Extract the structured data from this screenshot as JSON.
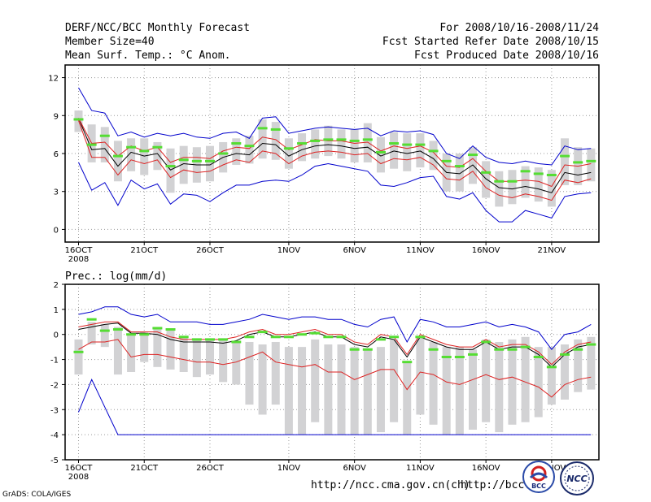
{
  "header": {
    "title": "DERF/NCC/BCC Monthly Forecast",
    "member": "Member Size=40",
    "variable": "Mean Surf. Temp.: °C Anom.",
    "period": "For 2008/10/16-2008/11/24",
    "refer": "Fcst Started Refer Date 2008/10/15",
    "produced": "Fcst Produced Date 2008/10/16"
  },
  "footer": {
    "url1": "http://ncc.cma.gov.cn(ch)",
    "url2": "http://bcc.c",
    "grads": "GrADS: COLA/IGES",
    "logo_bcc_text": "BCC",
    "logo_ncc_text": "NCC"
  },
  "colors": {
    "box": "#d2d2d4",
    "mean": "#55dd33",
    "ensemble": "#000000",
    "spread": "#dd2222",
    "extreme": "#0000cc",
    "grid": "#999999"
  },
  "chart_data": [
    {
      "type": "line",
      "title": "Mean Surf. Temp.: °C Anom.",
      "xlabel": "",
      "ylabel": "",
      "ylim": [
        -1,
        13
      ],
      "yticks": [
        0,
        3,
        6,
        9,
        12
      ],
      "xticks": [
        {
          "day": 0,
          "label": "16OCT",
          "sub": "2008"
        },
        {
          "day": 5,
          "label": "21OCT"
        },
        {
          "day": 10,
          "label": "26OCT"
        },
        {
          "day": 16,
          "label": "1NOV"
        },
        {
          "day": 21,
          "label": "6NOV"
        },
        {
          "day": 26,
          "label": "11NOV"
        },
        {
          "day": 31,
          "label": "16NOV"
        },
        {
          "day": 36,
          "label": "21NOV"
        }
      ],
      "grid": true,
      "x": [
        0,
        1,
        2,
        3,
        4,
        5,
        6,
        7,
        8,
        9,
        10,
        11,
        12,
        13,
        14,
        15,
        16,
        17,
        18,
        19,
        20,
        21,
        22,
        23,
        24,
        25,
        26,
        27,
        28,
        29,
        30,
        31,
        32,
        33,
        34,
        35,
        36,
        37,
        38,
        39
      ],
      "series": [
        {
          "name": "ensemble mean",
          "values": [
            8.8,
            6.3,
            6.4,
            5.0,
            6.1,
            5.8,
            6.0,
            4.7,
            5.2,
            5.1,
            5.1,
            5.7,
            6.0,
            5.9,
            6.8,
            6.7,
            5.8,
            6.3,
            6.6,
            6.7,
            6.6,
            6.4,
            6.5,
            5.8,
            6.2,
            6.0,
            6.2,
            5.6,
            4.5,
            4.4,
            5.1,
            4.0,
            3.3,
            3.2,
            3.4,
            3.2,
            2.9,
            4.5,
            4.3,
            4.5
          ]
        },
        {
          "name": "upper spread",
          "values": [
            8.8,
            6.8,
            6.9,
            5.8,
            6.6,
            6.2,
            6.5,
            5.3,
            5.7,
            5.7,
            5.6,
            6.2,
            6.5,
            6.4,
            7.3,
            7.1,
            6.3,
            6.7,
            7.1,
            7.0,
            7.0,
            6.8,
            6.9,
            6.2,
            6.6,
            6.4,
            6.6,
            6.1,
            5.0,
            4.9,
            5.6,
            4.6,
            3.8,
            3.8,
            3.9,
            3.8,
            3.4,
            5.1,
            5.0,
            5.2
          ]
        },
        {
          "name": "lower spread",
          "values": [
            8.6,
            5.7,
            5.7,
            4.3,
            5.5,
            5.2,
            5.5,
            4.1,
            4.7,
            4.5,
            4.6,
            5.1,
            5.5,
            5.3,
            6.2,
            6.0,
            5.2,
            5.8,
            6.1,
            6.2,
            6.1,
            5.9,
            6.0,
            5.2,
            5.6,
            5.5,
            5.7,
            5.1,
            4.0,
            3.9,
            4.6,
            3.3,
            2.7,
            2.5,
            2.8,
            2.6,
            2.3,
            3.9,
            3.7,
            4.0
          ]
        },
        {
          "name": "max",
          "values": [
            11.2,
            9.4,
            9.2,
            7.4,
            7.7,
            7.3,
            7.6,
            7.4,
            7.6,
            7.3,
            7.2,
            7.6,
            7.7,
            7.2,
            8.8,
            8.9,
            7.6,
            7.8,
            8.0,
            8.1,
            8.0,
            7.9,
            8.0,
            7.4,
            7.8,
            7.7,
            7.8,
            7.5,
            6.0,
            5.6,
            6.6,
            5.7,
            5.3,
            5.2,
            5.4,
            5.2,
            5.1,
            6.6,
            6.3,
            6.4
          ]
        },
        {
          "name": "min",
          "values": [
            5.3,
            3.1,
            3.7,
            1.9,
            3.9,
            3.2,
            3.6,
            2.0,
            2.8,
            2.7,
            2.2,
            2.9,
            3.5,
            3.5,
            3.8,
            3.9,
            3.8,
            4.3,
            5.0,
            5.2,
            5.0,
            4.8,
            4.6,
            3.5,
            3.4,
            3.7,
            4.1,
            4.2,
            2.6,
            2.4,
            2.9,
            1.5,
            0.6,
            0.6,
            1.5,
            1.2,
            0.9,
            2.6,
            2.8,
            2.9
          ]
        },
        {
          "name": "member mean (green)",
          "values": [
            8.7,
            6.7,
            7.4,
            5.8,
            6.5,
            6.2,
            6.5,
            5.0,
            5.5,
            5.4,
            5.4,
            6.0,
            6.8,
            6.6,
            8.0,
            7.9,
            6.4,
            6.8,
            7.0,
            7.1,
            7.1,
            7.0,
            7.1,
            6.1,
            6.8,
            6.7,
            6.7,
            6.2,
            5.4,
            5.0,
            5.9,
            4.5,
            3.8,
            3.8,
            4.6,
            4.4,
            4.3,
            5.8,
            5.3,
            5.4
          ]
        }
      ],
      "boxes": {
        "top": [
          9.4,
          8.3,
          8.1,
          7.0,
          7.2,
          7.2,
          6.9,
          6.4,
          6.6,
          6.5,
          6.6,
          6.9,
          7.2,
          7.4,
          8.7,
          8.5,
          7.2,
          7.6,
          7.9,
          8.2,
          7.9,
          7.9,
          8.4,
          7.3,
          7.7,
          7.6,
          7.6,
          7.0,
          6.0,
          6.0,
          6.5,
          5.4,
          4.6,
          4.7,
          5.0,
          4.9,
          4.7,
          7.2,
          6.5,
          6.4
        ],
        "bottom": [
          7.7,
          5.3,
          5.3,
          3.8,
          4.6,
          4.3,
          4.7,
          2.9,
          3.6,
          3.7,
          3.8,
          4.5,
          5.1,
          5.2,
          5.6,
          5.5,
          4.8,
          5.4,
          5.6,
          5.8,
          5.6,
          5.3,
          5.3,
          4.5,
          4.8,
          4.6,
          4.9,
          4.7,
          3.0,
          3.0,
          3.6,
          2.5,
          1.8,
          2.0,
          2.5,
          2.2,
          1.8,
          3.5,
          3.5,
          3.8
        ]
      }
    },
    {
      "type": "line",
      "title": "Prec.: log(mm/d)",
      "xlabel": "",
      "ylabel": "",
      "ylim": [
        -5,
        2
      ],
      "yticks": [
        -5,
        -4,
        -3,
        -2,
        -1,
        0,
        1,
        2
      ],
      "xticks": [
        {
          "day": 0,
          "label": "16OCT",
          "sub": "2008"
        },
        {
          "day": 5,
          "label": "21OCT"
        },
        {
          "day": 10,
          "label": "26OCT"
        },
        {
          "day": 16,
          "label": "1NOV"
        },
        {
          "day": 21,
          "label": "6NOV"
        },
        {
          "day": 26,
          "label": "11NOV"
        },
        {
          "day": 31,
          "label": "16NOV"
        },
        {
          "day": 36,
          "label": "21NOV"
        }
      ],
      "grid": true,
      "x": [
        0,
        1,
        2,
        3,
        4,
        5,
        6,
        7,
        8,
        9,
        10,
        11,
        12,
        13,
        14,
        15,
        16,
        17,
        18,
        19,
        20,
        21,
        22,
        23,
        24,
        25,
        26,
        27,
        28,
        29,
        30,
        31,
        32,
        33,
        34,
        35,
        36,
        37,
        38,
        39
      ],
      "series": [
        {
          "name": "ensemble mean",
          "values": [
            0.2,
            0.3,
            0.4,
            0.45,
            0.05,
            0.05,
            0.0,
            -0.2,
            -0.3,
            -0.3,
            -0.3,
            -0.35,
            -0.25,
            0.0,
            0.1,
            -0.1,
            -0.1,
            0.0,
            0.1,
            -0.1,
            -0.1,
            -0.4,
            -0.5,
            -0.1,
            -0.2,
            -0.9,
            -0.1,
            -0.3,
            -0.5,
            -0.6,
            -0.6,
            -0.3,
            -0.6,
            -0.5,
            -0.5,
            -0.8,
            -1.3,
            -0.8,
            -0.5,
            -0.4
          ]
        },
        {
          "name": "upper spread",
          "values": [
            0.3,
            0.4,
            0.5,
            0.5,
            0.1,
            0.1,
            0.1,
            -0.1,
            -0.2,
            -0.2,
            -0.2,
            -0.2,
            -0.1,
            0.1,
            0.2,
            0.0,
            0.0,
            0.1,
            0.2,
            0.0,
            0.0,
            -0.3,
            -0.4,
            0.0,
            -0.1,
            -0.8,
            0.0,
            -0.2,
            -0.4,
            -0.5,
            -0.5,
            -0.2,
            -0.5,
            -0.4,
            -0.4,
            -0.7,
            -1.2,
            -0.7,
            -0.4,
            -0.3
          ]
        },
        {
          "name": "lower spread",
          "values": [
            -0.6,
            -0.3,
            -0.3,
            -0.2,
            -0.9,
            -0.8,
            -0.8,
            -0.9,
            -1.0,
            -1.1,
            -1.1,
            -1.2,
            -1.1,
            -0.9,
            -0.7,
            -1.1,
            -1.2,
            -1.3,
            -1.2,
            -1.5,
            -1.5,
            -1.8,
            -1.6,
            -1.4,
            -1.4,
            -2.2,
            -1.5,
            -1.6,
            -1.9,
            -2.0,
            -1.8,
            -1.6,
            -1.8,
            -1.7,
            -1.9,
            -2.1,
            -2.5,
            -2.0,
            -1.8,
            -1.7
          ]
        },
        {
          "name": "max",
          "values": [
            0.8,
            0.9,
            1.1,
            1.1,
            0.8,
            0.7,
            0.8,
            0.5,
            0.5,
            0.5,
            0.4,
            0.4,
            0.5,
            0.6,
            0.8,
            0.7,
            0.6,
            0.7,
            0.7,
            0.6,
            0.6,
            0.4,
            0.3,
            0.6,
            0.7,
            -0.3,
            0.6,
            0.5,
            0.3,
            0.3,
            0.4,
            0.5,
            0.3,
            0.4,
            0.3,
            0.1,
            -0.6,
            0.0,
            0.1,
            0.4
          ]
        },
        {
          "name": "min",
          "values": [
            -3.1,
            -1.8,
            -2.9,
            -4.0,
            -4.0,
            -4.0,
            -4.0,
            -4.0,
            -4.0,
            -4.0,
            -4.0,
            -4.0,
            -4.0,
            -4.0,
            -4.0,
            -4.0,
            -4.0,
            -4.0,
            -4.0,
            -4.0,
            -4.0,
            -4.0,
            -4.0,
            -4.0,
            -4.0,
            -4.0,
            -4.0,
            -4.0,
            -4.0,
            -4.0,
            -4.0,
            -4.0,
            -4.0,
            -4.0,
            -4.0,
            -4.0,
            -4.0,
            -4.0,
            -4.0,
            -4.0
          ]
        },
        {
          "name": "member mean (green)",
          "values": [
            -0.7,
            0.6,
            0.15,
            0.2,
            0.0,
            0.0,
            0.25,
            0.2,
            -0.1,
            -0.2,
            -0.2,
            -0.2,
            -0.3,
            -0.1,
            0.1,
            -0.1,
            -0.1,
            0.0,
            0.05,
            -0.1,
            -0.1,
            -0.6,
            -0.6,
            -0.2,
            -0.1,
            -1.1,
            -0.1,
            -0.6,
            -0.9,
            -0.9,
            -0.8,
            -0.3,
            -0.6,
            -0.6,
            -0.5,
            -0.9,
            -1.3,
            -0.8,
            -0.6,
            -0.4
          ]
        }
      ],
      "boxes": {
        "top": [
          -0.2,
          0.5,
          0.4,
          0.3,
          0.0,
          0.1,
          0.3,
          0.2,
          -0.1,
          -0.2,
          -0.2,
          -0.2,
          -0.3,
          -0.3,
          -0.4,
          -0.3,
          -0.5,
          -0.5,
          -0.2,
          -0.4,
          -0.4,
          -0.5,
          -0.6,
          -0.5,
          -0.2,
          -1.1,
          -0.1,
          -0.3,
          -0.5,
          -0.5,
          -0.6,
          -0.2,
          -0.3,
          -0.2,
          -0.1,
          -0.5,
          -0.5,
          -0.4,
          -0.2,
          -0.1
        ],
        "bottom": [
          -1.6,
          -0.4,
          -0.5,
          -1.6,
          -1.5,
          -1.1,
          -1.3,
          -1.4,
          -1.5,
          -1.7,
          -1.6,
          -1.9,
          -2.0,
          -2.8,
          -3.2,
          -2.8,
          -4.0,
          -4.0,
          -3.5,
          -4.0,
          -4.0,
          -4.0,
          -4.0,
          -3.9,
          -3.5,
          -4.0,
          -3.2,
          -3.6,
          -4.0,
          -4.0,
          -3.8,
          -3.5,
          -3.9,
          -3.6,
          -3.5,
          -3.3,
          -2.8,
          -2.6,
          -2.3,
          -2.2
        ]
      }
    }
  ]
}
